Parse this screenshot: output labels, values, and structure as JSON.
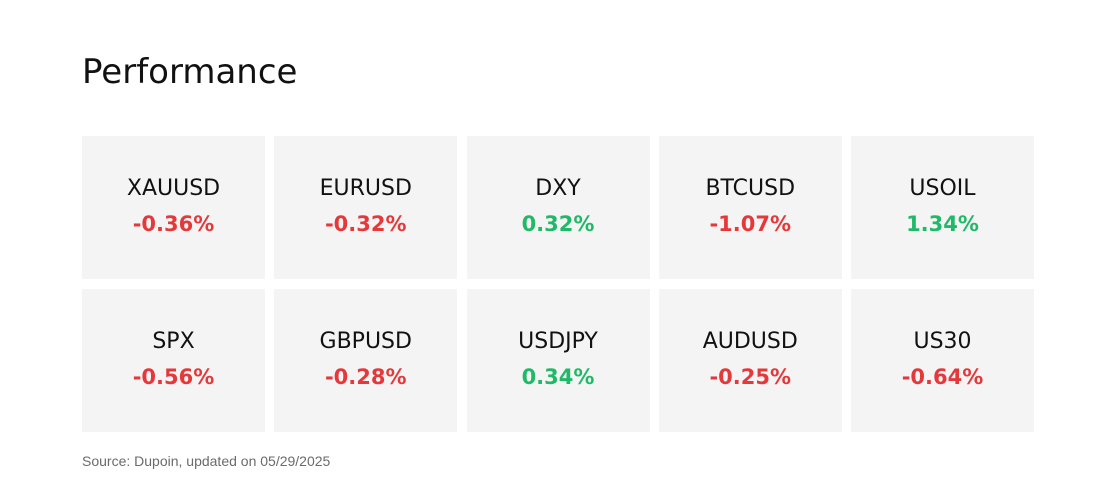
{
  "title": "Performance",
  "colors": {
    "negative": "#e5383b",
    "positive": "#1fb967",
    "tile_background": "#f4f4f4"
  },
  "tiles": [
    {
      "symbol": "XAUUSD",
      "change": "-0.36%",
      "direction": "negative"
    },
    {
      "symbol": "EURUSD",
      "change": "-0.32%",
      "direction": "negative"
    },
    {
      "symbol": "DXY",
      "change": "0.32%",
      "direction": "positive"
    },
    {
      "symbol": "BTCUSD",
      "change": "-1.07%",
      "direction": "negative"
    },
    {
      "symbol": "USOIL",
      "change": "1.34%",
      "direction": "positive"
    },
    {
      "symbol": "SPX",
      "change": "-0.56%",
      "direction": "negative"
    },
    {
      "symbol": "GBPUSD",
      "change": "-0.28%",
      "direction": "negative"
    },
    {
      "symbol": "USDJPY",
      "change": "0.34%",
      "direction": "positive"
    },
    {
      "symbol": "AUDUSD",
      "change": "-0.25%",
      "direction": "negative"
    },
    {
      "symbol": "US30",
      "change": "-0.64%",
      "direction": "negative"
    }
  ],
  "source": "Source: Dupoin, updated on 05/29/2025"
}
